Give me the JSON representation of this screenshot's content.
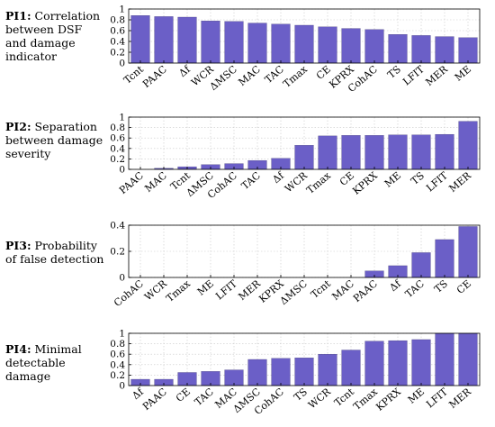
{
  "chart_data": [
    {
      "type": "bar",
      "label_bold": "PI1:",
      "label_text": "Correlation between DSF and damage indicator",
      "categories": [
        "Tcnt",
        "PAAC",
        "Δf",
        "WCR",
        "ΔMSC",
        "MAC",
        "TAC",
        "Tmax",
        "CE",
        "KPRX",
        "CohAC",
        "TS",
        "LFIT",
        "MER",
        "ME"
      ],
      "values": [
        0.88,
        0.86,
        0.85,
        0.78,
        0.77,
        0.74,
        0.72,
        0.7,
        0.67,
        0.64,
        0.62,
        0.53,
        0.51,
        0.49,
        0.47
      ],
      "ylim": [
        0,
        1
      ],
      "yticks": [
        "0",
        "0.2",
        "0.4",
        "0.6",
        "0.8",
        "1"
      ],
      "ytick_values": [
        0,
        0.2,
        0.4,
        0.6,
        0.8,
        1
      ],
      "grid": true,
      "bar_color": "#6b5fc7"
    },
    {
      "type": "bar",
      "label_bold": "PI2:",
      "label_text": "Separation between damage severity",
      "categories": [
        "PAAC",
        "MAC",
        "Tcnt",
        "ΔMSC",
        "CohAC",
        "TAC",
        "Δf",
        "WCR",
        "Tmax",
        "CE",
        "KPRX",
        "ME",
        "TS",
        "LFIT",
        "MER"
      ],
      "values": [
        0.0,
        0.02,
        0.05,
        0.09,
        0.11,
        0.17,
        0.21,
        0.46,
        0.64,
        0.65,
        0.65,
        0.66,
        0.66,
        0.67,
        0.92
      ],
      "ylim": [
        0,
        1
      ],
      "yticks": [
        "0",
        "0.2",
        "0.4",
        "0.6",
        "0.8",
        "1"
      ],
      "ytick_values": [
        0,
        0.2,
        0.4,
        0.6,
        0.8,
        1
      ],
      "grid": true,
      "bar_color": "#6b5fc7"
    },
    {
      "type": "bar",
      "label_bold": "PI3:",
      "label_text": "Probability of false detection",
      "categories": [
        "CohAC",
        "WCR",
        "Tmax",
        "ME",
        "LFIT",
        "MER",
        "KPRX",
        "ΔMSC",
        "Tcnt",
        "MAC",
        "PAAC",
        "Δf",
        "TAC",
        "TS",
        "CE"
      ],
      "values": [
        0,
        0,
        0,
        0,
        0,
        0,
        0,
        0,
        0,
        0,
        0.05,
        0.09,
        0.19,
        0.29,
        0.39
      ],
      "ylim": [
        0,
        0.4
      ],
      "yticks": [
        "0",
        "0.2",
        "0.4"
      ],
      "ytick_values": [
        0,
        0.2,
        0.4
      ],
      "grid": true,
      "bar_color": "#6b5fc7"
    },
    {
      "type": "bar",
      "label_bold": "PI4:",
      "label_text": "Minimal detectable damage",
      "categories": [
        "Δf",
        "PAAC",
        "CE",
        "TAC",
        "MAC",
        "ΔMSC",
        "CohAC",
        "TS",
        "WCR",
        "Tcnt",
        "Tmax",
        "KPRX",
        "ME",
        "LFIT",
        "MER"
      ],
      "values": [
        0.12,
        0.12,
        0.25,
        0.27,
        0.3,
        0.5,
        0.52,
        0.53,
        0.6,
        0.68,
        0.85,
        0.86,
        0.88,
        1.0,
        1.0
      ],
      "ylim": [
        0,
        1
      ],
      "yticks": [
        "0",
        "0.2",
        "0.4",
        "0.6",
        "0.8",
        "1"
      ],
      "ytick_values": [
        0,
        0.2,
        0.4,
        0.6,
        0.8,
        1
      ],
      "grid": true,
      "bar_color": "#6b5fc7"
    }
  ]
}
